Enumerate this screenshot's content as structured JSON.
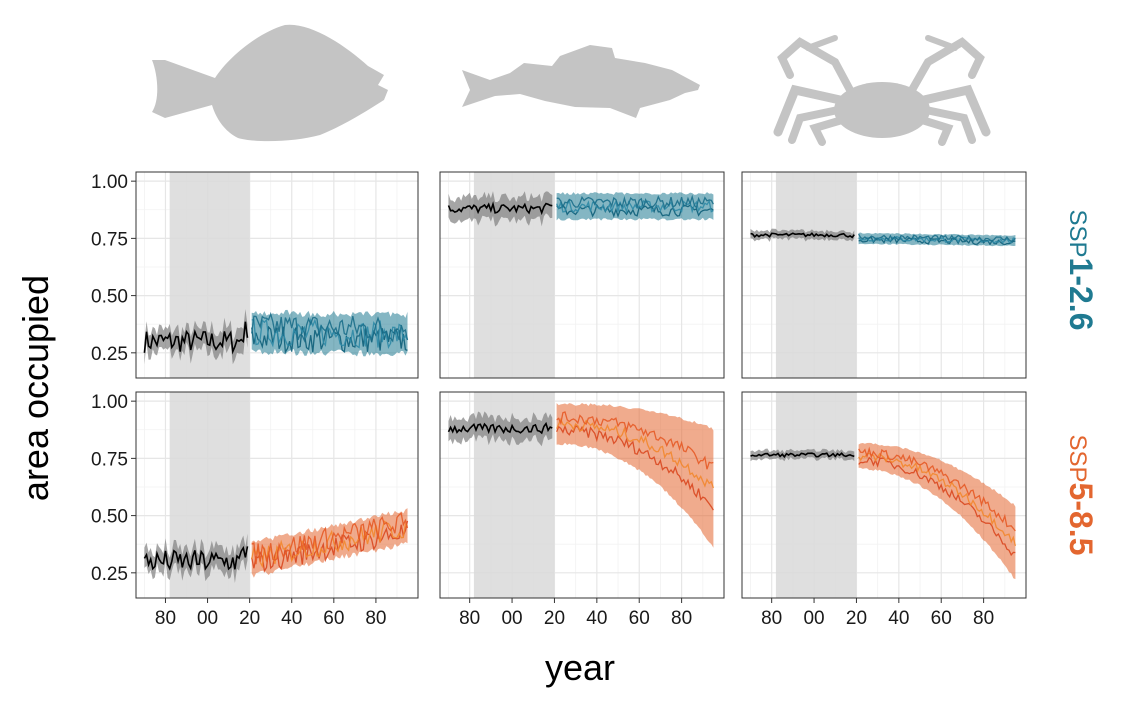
{
  "chart_data": {
    "type": "line",
    "xlabel": "year",
    "ylabel": "area occupied",
    "x_axis": {
      "ticks": [
        1980,
        2000,
        2020,
        2040,
        2060,
        2080
      ],
      "tick_labels": [
        "80",
        "00",
        "20",
        "40",
        "60",
        "80"
      ],
      "range": [
        1966,
        2100
      ]
    },
    "y_axis": {
      "ticks": [
        0.25,
        0.5,
        0.75,
        1.0
      ],
      "tick_labels": [
        "0.25",
        "0.50",
        "0.75",
        "1.00"
      ],
      "range": [
        0.14,
        1.04
      ]
    },
    "grid": true,
    "reference_period": [
      1982,
      2020
    ],
    "species_icons": [
      "flatfish-icon",
      "cod-icon",
      "crab-icon"
    ],
    "rows": [
      {
        "label_prefix": "SSP",
        "label_value": "1-2.6",
        "color": "#1f7a91",
        "series_colors": [
          "#0e5f7a",
          "#2f8aa6",
          "#1b6e8a"
        ]
      },
      {
        "label_prefix": "SSP",
        "label_value": "5-8.5",
        "color": "#e3662f",
        "series_colors": [
          "#d9471f",
          "#f2872e",
          "#e65a26"
        ]
      }
    ],
    "panels": [
      {
        "species": "flatfish-icon",
        "scenario": "SSP1-2.6",
        "historical": {
          "start": 1970,
          "end": 2019,
          "mean": 0.3,
          "band": 0.04,
          "noise": 0.05,
          "end_value": 0.36
        },
        "projection": {
          "start": 2021,
          "end": 2095,
          "from": 0.34,
          "to": 0.33,
          "band": 0.07,
          "noise": 0.06
        }
      },
      {
        "species": "cod-icon",
        "scenario": "SSP1-2.6",
        "historical": {
          "start": 1970,
          "end": 2019,
          "mean": 0.88,
          "band": 0.04,
          "noise": 0.02,
          "end_value": 0.89
        },
        "projection": {
          "start": 2021,
          "end": 2095,
          "from": 0.89,
          "to": 0.89,
          "band": 0.05,
          "noise": 0.025
        }
      },
      {
        "species": "crab-icon",
        "scenario": "SSP1-2.6",
        "historical": {
          "start": 1970,
          "end": 2019,
          "mean": 0.765,
          "band": 0.015,
          "noise": 0.008,
          "end_value": 0.76
        },
        "projection": {
          "start": 2021,
          "end": 2095,
          "from": 0.75,
          "to": 0.74,
          "band": 0.02,
          "noise": 0.012
        }
      },
      {
        "species": "flatfish-icon",
        "scenario": "SSP5-8.5",
        "historical": {
          "start": 1970,
          "end": 2019,
          "mean": 0.3,
          "band": 0.04,
          "noise": 0.05,
          "end_value": 0.36
        },
        "projection": {
          "start": 2021,
          "end": 2095,
          "from": 0.31,
          "to": 0.45,
          "band": 0.06,
          "noise": 0.05
        }
      },
      {
        "species": "cod-icon",
        "scenario": "SSP5-8.5",
        "historical": {
          "start": 1970,
          "end": 2019,
          "mean": 0.88,
          "band": 0.04,
          "noise": 0.02,
          "end_value": 0.89
        },
        "projection": {
          "start": 2021,
          "end": 2095,
          "from": 0.9,
          "to": 0.62,
          "band": 0.08,
          "noise": 0.025,
          "curve": 2.2
        }
      },
      {
        "species": "crab-icon",
        "scenario": "SSP5-8.5",
        "historical": {
          "start": 1970,
          "end": 2019,
          "mean": 0.765,
          "band": 0.015,
          "noise": 0.008,
          "end_value": 0.76
        },
        "projection": {
          "start": 2021,
          "end": 2095,
          "from": 0.76,
          "to": 0.38,
          "band": 0.05,
          "noise": 0.02,
          "curve": 2.0
        }
      }
    ]
  }
}
